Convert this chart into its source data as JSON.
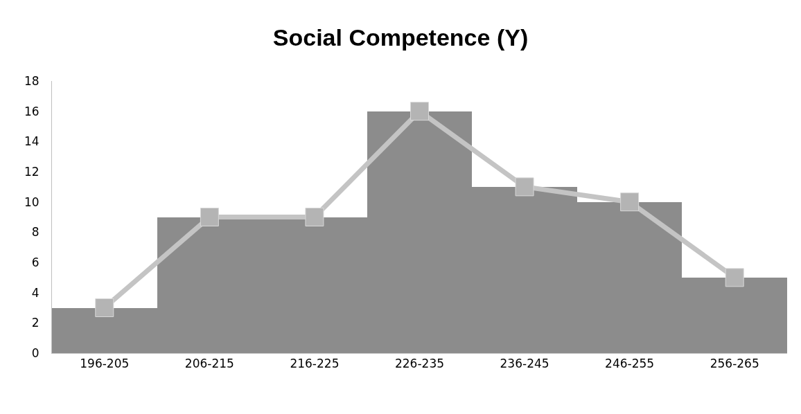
{
  "chart_data": {
    "type": "bar",
    "title": "Social Competence (Y)",
    "categories": [
      "196-205",
      "206-215",
      "216-225",
      "226-235",
      "236-245",
      "246-255",
      "256-265"
    ],
    "series": [
      {
        "color": "#8c8c8c",
        "values": [
          3,
          9,
          9,
          16,
          11,
          10,
          5
        ]
      },
      {
        "type": "line",
        "color": "#c4c4c4",
        "marker": "square",
        "values": [
          3,
          9,
          9,
          16,
          11,
          10,
          5
        ]
      }
    ],
    "ylim": [
      0,
      18
    ],
    "yticks": [
      0,
      2,
      4,
      6,
      8,
      10,
      12,
      14,
      16,
      18
    ],
    "grid": false
  }
}
